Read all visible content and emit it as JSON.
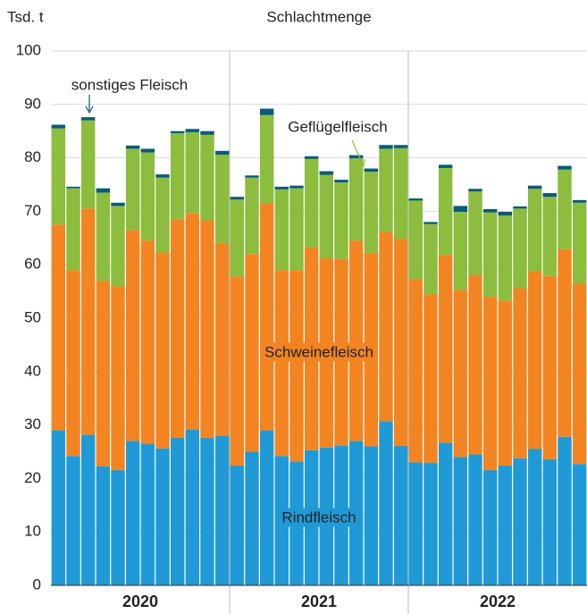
{
  "chart_data": {
    "type": "stacked_bar",
    "title": "Schlachtmenge",
    "y_label": "Tsd. t",
    "x_groups": [
      "2020",
      "2021",
      "2022"
    ],
    "categories": [
      null,
      null,
      null,
      null,
      null,
      null,
      null,
      null,
      null,
      null,
      null,
      null,
      null,
      null,
      null,
      null,
      null,
      null,
      null,
      null,
      null,
      null,
      null,
      null,
      null,
      null,
      null,
      null,
      null,
      null,
      null,
      null,
      null,
      null,
      null,
      null
    ],
    "series": [
      {
        "name": "Rindfleisch",
        "color": "#1f9ad6",
        "values": [
          29,
          24.2,
          28.2,
          22.3,
          21.6,
          27,
          26.5,
          25.6,
          27.6,
          29.2,
          27.6,
          28,
          22.4,
          25,
          29,
          24.2,
          23.2,
          25.3,
          25.8,
          26.2,
          27,
          26,
          30.7,
          26.1,
          23,
          22.9,
          26.7,
          24,
          24.5,
          21.6,
          22.4,
          23.8,
          25.5,
          23.6,
          27.8,
          22.7
        ]
      },
      {
        "name": "Schweinefleisch",
        "color": "#f28522",
        "values": [
          38.5,
          34.8,
          42.3,
          34.7,
          34.4,
          39.5,
          38,
          36.7,
          40.9,
          40.5,
          40.7,
          36,
          35.4,
          37,
          42.5,
          34.8,
          35.8,
          37.9,
          35.4,
          34.9,
          37.5,
          36.2,
          35.4,
          38.7,
          34.2,
          31.6,
          35.1,
          31.3,
          33.6,
          32.4,
          30.9,
          31.8,
          33.3,
          34.3,
          35.1,
          33.8
        ]
      },
      {
        "name": "Geflügelfleisch",
        "color": "#8cbd3f",
        "values": [
          18,
          15.3,
          16.5,
          16.5,
          15,
          15.2,
          16.5,
          14,
          16.1,
          15.1,
          16,
          16.6,
          14.4,
          14.3,
          16.5,
          15.1,
          15.3,
          16.6,
          15.6,
          14.3,
          15.4,
          15.2,
          15.6,
          17,
          14.8,
          13.1,
          16.3,
          14.6,
          15.6,
          15.8,
          15.9,
          14.9,
          15.4,
          14.8,
          14.9,
          15.1
        ]
      },
      {
        "name": "sonstiges Fleisch",
        "color": "#0b5a7a",
        "values": [
          0.7,
          0.3,
          0.6,
          0.8,
          0.6,
          0.6,
          0.7,
          0.6,
          0.4,
          0.6,
          0.7,
          0.7,
          0.5,
          0.4,
          1.2,
          0.5,
          0.5,
          0.5,
          0.7,
          0.5,
          0.6,
          0.6,
          0.7,
          0.6,
          0.4,
          0.4,
          0.6,
          1.1,
          0.5,
          0.6,
          0.7,
          0.4,
          0.6,
          0.7,
          0.7,
          0.5
        ]
      }
    ],
    "ylim": [
      0,
      100
    ],
    "yticks": [
      0,
      10,
      20,
      30,
      40,
      50,
      60,
      70,
      80,
      90,
      100
    ],
    "grid": true
  }
}
